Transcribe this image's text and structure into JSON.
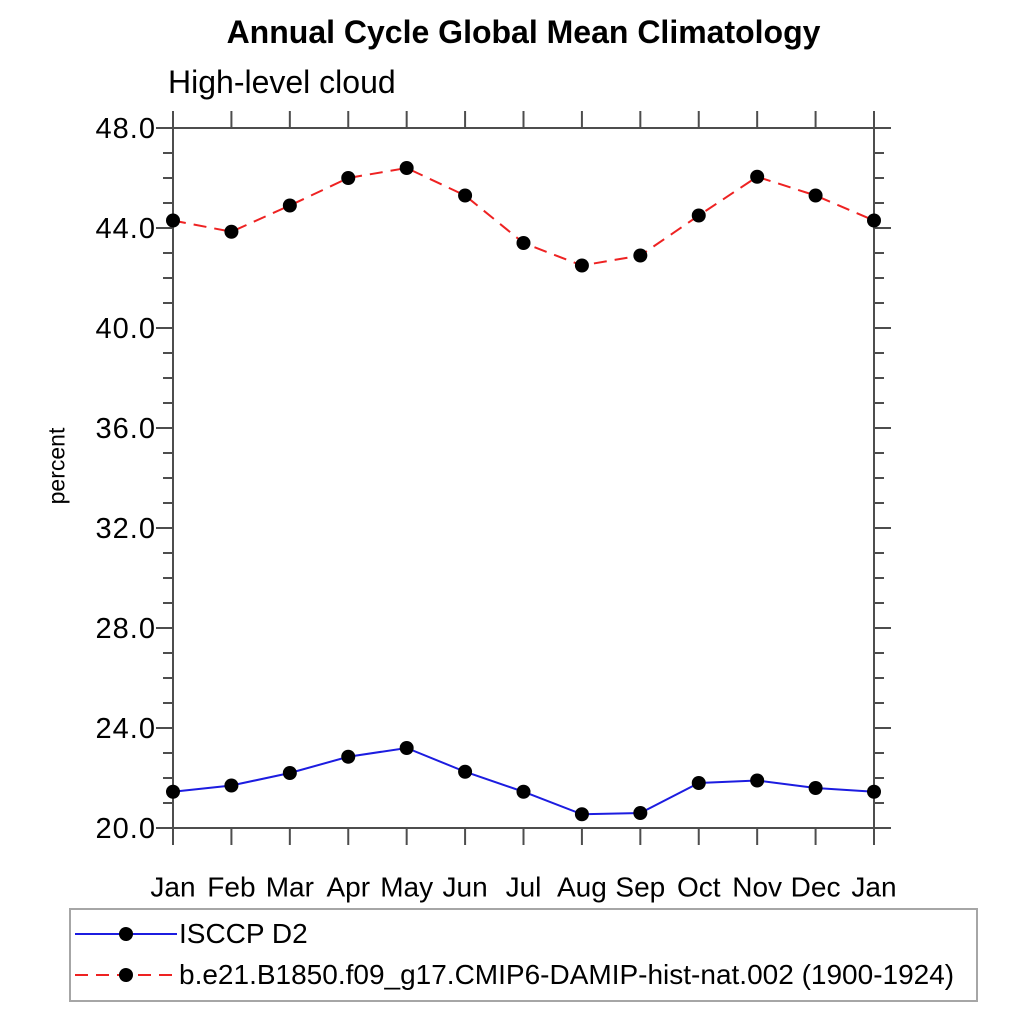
{
  "chart": {
    "title": "Annual Cycle Global Mean Climatology",
    "subtitle": "High-level cloud",
    "ylabel": "percent"
  },
  "colors": {
    "axis": "#4d4d4d",
    "text": "#000000",
    "legend_border": "#a6a6a6",
    "series_blue": "#1c1ce0",
    "series_red": "#ee2222",
    "marker": "#000000"
  },
  "chart_data": {
    "type": "line",
    "title": "Annual Cycle Global Mean Climatology",
    "subtitle": "High-level cloud",
    "xlabel": "",
    "ylabel": "percent",
    "categories": [
      "Jan",
      "Feb",
      "Mar",
      "Apr",
      "May",
      "Jun",
      "Jul",
      "Aug",
      "Sep",
      "Oct",
      "Nov",
      "Dec",
      "Jan"
    ],
    "ylim": [
      20,
      48
    ],
    "y_major_ticks": [
      20,
      24,
      28,
      32,
      36,
      40,
      44,
      48
    ],
    "y_tick_labels": [
      "20.0",
      "24.0",
      "28.0",
      "32.0",
      "36.0",
      "40.0",
      "44.0",
      "48.0"
    ],
    "y_minor_step": 1,
    "grid": false,
    "legend_position": "bottom-left",
    "series": [
      {
        "name": "ISCCP D2",
        "color": "#1c1ce0",
        "style": "solid",
        "marker": "circle",
        "marker_color": "#000000",
        "values": [
          21.45,
          21.7,
          22.2,
          22.85,
          23.2,
          22.25,
          21.45,
          20.55,
          20.6,
          21.8,
          21.9,
          21.6,
          21.45
        ]
      },
      {
        "name": "b.e21.B1850.f09_g17.CMIP6-DAMIP-hist-nat.002 (1900-1924)",
        "color": "#ee2222",
        "style": "dashed",
        "marker": "circle",
        "marker_color": "#000000",
        "values": [
          44.3,
          43.85,
          44.9,
          46.0,
          46.4,
          45.3,
          43.4,
          42.5,
          42.9,
          44.5,
          46.05,
          45.3,
          44.3
        ]
      }
    ]
  }
}
